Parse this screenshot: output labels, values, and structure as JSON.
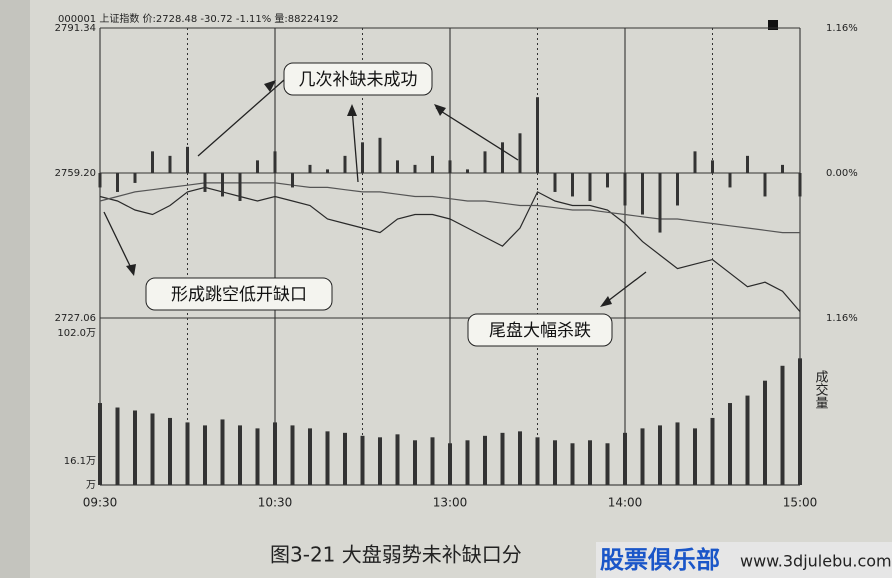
{
  "chart_data": [
    {
      "type": "line",
      "header": "000001 上证指数 价:2728.48 -30.72 -1.11% 量:88224192",
      "annotations": [
        "几次补缺未成功",
        "形成跳空低开缺口",
        "尾盘大幅杀跌"
      ],
      "x": [
        0,
        6,
        12,
        18,
        24,
        30,
        36,
        42,
        48,
        54,
        60,
        66,
        72,
        78,
        84,
        90,
        96,
        102,
        108,
        114,
        120,
        126,
        132,
        138,
        144,
        150,
        156,
        162,
        168,
        174,
        180,
        186,
        192,
        198,
        204,
        210,
        216,
        222,
        228,
        234,
        240
      ],
      "xlim": [
        0,
        240
      ],
      "xticks": [
        {
          "value": 0,
          "label": "09:30"
        },
        {
          "value": 60,
          "label": "10:30"
        },
        {
          "value": 120,
          "label": "13:00"
        },
        {
          "value": 180,
          "label": "14:00"
        },
        {
          "value": 240,
          "label": "15:00"
        }
      ],
      "xminor": [
        30,
        90,
        150,
        210
      ],
      "ylim": [
        2727.06,
        2791.34
      ],
      "yticks": [
        2791.34,
        {
          "value": 2759.2,
          "label": "2759.20"
        },
        2727.06
      ],
      "y2lim": [
        -1.16,
        1.16
      ],
      "y2ticks": [
        {
          "value": 1.16,
          "label": "1.16%"
        },
        {
          "value": 0,
          "label": "0.00%"
        },
        {
          "value": -1.16,
          "label": "1.16%"
        }
      ],
      "series": [
        {
          "style": "line",
          "color": "#2a2a2a",
          "values": [
            2754,
            2753,
            2751,
            2750,
            2752,
            2755,
            2756,
            2755,
            2754,
            2753,
            2754,
            2753,
            2752,
            2749,
            2748,
            2747,
            2746,
            2749,
            2750,
            2750,
            2749,
            2747,
            2745,
            2743,
            2747,
            2755,
            2753,
            2752,
            2752,
            2751,
            2748,
            2744,
            2741,
            2738,
            2739,
            2740,
            2737,
            2734,
            2735,
            2733,
            2728.48
          ]
        },
        {
          "style": "line",
          "color": "#555555",
          "values": [
            2753,
            2754,
            2755,
            2755.5,
            2756,
            2756.5,
            2757,
            2757,
            2757,
            2757,
            2757,
            2756.5,
            2756,
            2756,
            2755.5,
            2755,
            2755,
            2754.5,
            2754,
            2754,
            2753.5,
            2753,
            2753,
            2752.5,
            2752,
            2752,
            2751.5,
            2751,
            2751,
            2750.5,
            2750,
            2749.5,
            2749,
            2749,
            2748.5,
            2748,
            2747.5,
            2747,
            2746.5,
            2746,
            2746
          ]
        },
        {
          "style": "bar",
          "color": "#333333",
          "values": [
            2756,
            2755,
            2757,
            2764,
            2763,
            2765,
            2755,
            2754,
            2753,
            2762,
            2764,
            2756,
            2761,
            2760,
            2763,
            2766,
            2767,
            2762,
            2761,
            2763,
            2762,
            2760,
            2764,
            2766,
            2768,
            2776,
            2755,
            2754,
            2753,
            2756,
            2752,
            2750,
            2746,
            2752,
            2764,
            2762,
            2756,
            2763,
            2754,
            2761,
            2754
          ]
        }
      ]
    },
    {
      "type": "bar",
      "axis_title": "成交量",
      "x": [
        0,
        6,
        12,
        18,
        24,
        30,
        36,
        42,
        48,
        54,
        60,
        66,
        72,
        78,
        84,
        90,
        96,
        102,
        108,
        114,
        120,
        126,
        132,
        138,
        144,
        150,
        156,
        162,
        168,
        174,
        180,
        186,
        192,
        198,
        204,
        210,
        216,
        222,
        228,
        234,
        240
      ],
      "xlim": [
        0,
        240
      ],
      "ylim": [
        0,
        102
      ],
      "yticks": [
        {
          "value": 102,
          "label": "102.0万"
        },
        {
          "value": 16.1,
          "label": "16.1万"
        },
        {
          "value": 0,
          "label": "万"
        }
      ],
      "color": "#333333",
      "values": [
        55,
        52,
        50,
        48,
        45,
        42,
        40,
        44,
        40,
        38,
        42,
        40,
        38,
        36,
        35,
        33,
        32,
        34,
        30,
        32,
        28,
        30,
        33,
        35,
        36,
        32,
        30,
        28,
        30,
        28,
        35,
        38,
        40,
        42,
        38,
        45,
        55,
        60,
        70,
        80,
        85
      ]
    }
  ],
  "caption": "图3-21  大盘弱势未补缺口分",
  "watermark": [
    "股票俱乐部",
    "www.3djulebu.com"
  ]
}
